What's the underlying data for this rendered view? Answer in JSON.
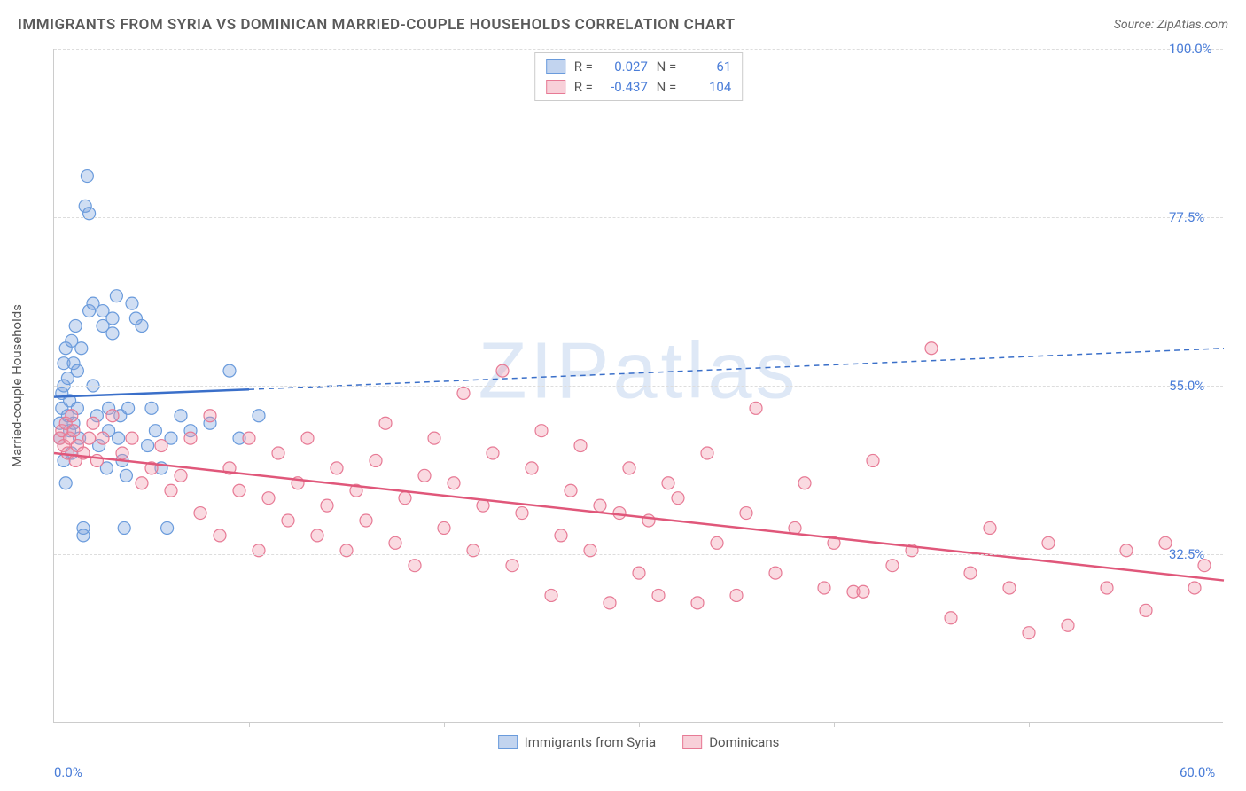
{
  "title": "IMMIGRANTS FROM SYRIA VS DOMINICAN MARRIED-COUPLE HOUSEHOLDS CORRELATION CHART",
  "source": "Source: ZipAtlas.com",
  "watermark": "ZIPatlas",
  "y_axis_title": "Married-couple Households",
  "chart": {
    "type": "scatter",
    "xlim": [
      0,
      60
    ],
    "ylim": [
      10,
      100
    ],
    "x_ticks": [
      0,
      60
    ],
    "y_ticks": [
      32.5,
      55.0,
      77.5,
      100.0
    ],
    "y_tick_labels": [
      "32.5%",
      "55.0%",
      "77.5%",
      "100.0%"
    ],
    "x_tick_labels": [
      "0.0%",
      "60.0%"
    ],
    "x_minor_ticks": [
      10,
      20,
      30,
      40,
      50
    ],
    "background_color": "#ffffff",
    "grid_color": "#dddddd",
    "axis_color": "#cccccc"
  },
  "series": [
    {
      "name": "Immigrants from Syria",
      "color_fill": "rgba(120,160,220,0.35)",
      "color_stroke": "#6a9bdc",
      "marker_radius": 7,
      "R": "0.027",
      "N": "61",
      "reg_line": {
        "x1": 0,
        "y1": 53.5,
        "x2": 10,
        "y2": 54.5,
        "extend_to": 60,
        "extend_y": 60.0,
        "color": "#3a6fc9",
        "width": 2.5
      },
      "points": [
        [
          0.3,
          48
        ],
        [
          0.3,
          50
        ],
        [
          0.4,
          52
        ],
        [
          0.4,
          54
        ],
        [
          0.5,
          45
        ],
        [
          0.5,
          55
        ],
        [
          0.5,
          58
        ],
        [
          0.6,
          60
        ],
        [
          0.6,
          42
        ],
        [
          0.7,
          51
        ],
        [
          0.7,
          56
        ],
        [
          0.8,
          53
        ],
        [
          0.8,
          49
        ],
        [
          0.9,
          61
        ],
        [
          0.9,
          46
        ],
        [
          1.0,
          58
        ],
        [
          1.0,
          50
        ],
        [
          1.1,
          63
        ],
        [
          1.2,
          52
        ],
        [
          1.2,
          57
        ],
        [
          1.3,
          48
        ],
        [
          1.4,
          60
        ],
        [
          1.5,
          36
        ],
        [
          1.5,
          35
        ],
        [
          1.6,
          79
        ],
        [
          1.7,
          83
        ],
        [
          1.8,
          78
        ],
        [
          1.8,
          65
        ],
        [
          2.0,
          66
        ],
        [
          2.0,
          55
        ],
        [
          2.2,
          51
        ],
        [
          2.3,
          47
        ],
        [
          2.5,
          65
        ],
        [
          2.5,
          63
        ],
        [
          2.7,
          44
        ],
        [
          2.8,
          49
        ],
        [
          2.8,
          52
        ],
        [
          3.0,
          62
        ],
        [
          3.0,
          64
        ],
        [
          3.2,
          67
        ],
        [
          3.3,
          48
        ],
        [
          3.4,
          51
        ],
        [
          3.5,
          45
        ],
        [
          3.6,
          36
        ],
        [
          3.7,
          43
        ],
        [
          3.8,
          52
        ],
        [
          4.0,
          66
        ],
        [
          4.2,
          64
        ],
        [
          4.5,
          63
        ],
        [
          4.8,
          47
        ],
        [
          5.0,
          52
        ],
        [
          5.2,
          49
        ],
        [
          5.5,
          44
        ],
        [
          5.8,
          36
        ],
        [
          6.0,
          48
        ],
        [
          6.5,
          51
        ],
        [
          7.0,
          49
        ],
        [
          8.0,
          50
        ],
        [
          9.0,
          57
        ],
        [
          9.5,
          48
        ],
        [
          10.5,
          51
        ]
      ]
    },
    {
      "name": "Dominicans",
      "color_fill": "rgba(240,150,170,0.35)",
      "color_stroke": "#e77a95",
      "marker_radius": 7,
      "R": "-0.437",
      "N": "104",
      "reg_line": {
        "x1": 0,
        "y1": 46.0,
        "x2": 60,
        "y2": 29.0,
        "extend_to": 60,
        "extend_y": 29.0,
        "color": "#e0577a",
        "width": 2.5
      },
      "points": [
        [
          0.3,
          48
        ],
        [
          0.4,
          49
        ],
        [
          0.5,
          47
        ],
        [
          0.6,
          50
        ],
        [
          0.7,
          46
        ],
        [
          0.8,
          48
        ],
        [
          0.9,
          51
        ],
        [
          1.0,
          49
        ],
        [
          1.1,
          45
        ],
        [
          1.2,
          47
        ],
        [
          1.5,
          46
        ],
        [
          1.8,
          48
        ],
        [
          2.0,
          50
        ],
        [
          2.2,
          45
        ],
        [
          2.5,
          48
        ],
        [
          3.0,
          51
        ],
        [
          3.5,
          46
        ],
        [
          4.0,
          48
        ],
        [
          4.5,
          42
        ],
        [
          5.0,
          44
        ],
        [
          5.5,
          47
        ],
        [
          6.0,
          41
        ],
        [
          6.5,
          43
        ],
        [
          7.0,
          48
        ],
        [
          7.5,
          38
        ],
        [
          8.0,
          51
        ],
        [
          8.5,
          35
        ],
        [
          9.0,
          44
        ],
        [
          9.5,
          41
        ],
        [
          10.0,
          48
        ],
        [
          10.5,
          33
        ],
        [
          11.0,
          40
        ],
        [
          11.5,
          46
        ],
        [
          12.0,
          37
        ],
        [
          12.5,
          42
        ],
        [
          13.0,
          48
        ],
        [
          13.5,
          35
        ],
        [
          14.0,
          39
        ],
        [
          14.5,
          44
        ],
        [
          15.0,
          33
        ],
        [
          15.5,
          41
        ],
        [
          16.0,
          37
        ],
        [
          16.5,
          45
        ],
        [
          17.0,
          50
        ],
        [
          17.5,
          34
        ],
        [
          18.0,
          40
        ],
        [
          18.5,
          31
        ],
        [
          19.0,
          43
        ],
        [
          19.5,
          48
        ],
        [
          20.0,
          36
        ],
        [
          20.5,
          42
        ],
        [
          21.0,
          54
        ],
        [
          21.5,
          33
        ],
        [
          22.0,
          39
        ],
        [
          22.5,
          46
        ],
        [
          23.0,
          57
        ],
        [
          23.5,
          31
        ],
        [
          24.0,
          38
        ],
        [
          24.5,
          44
        ],
        [
          25.0,
          49
        ],
        [
          25.5,
          27
        ],
        [
          26.0,
          35
        ],
        [
          26.5,
          41
        ],
        [
          27.0,
          47
        ],
        [
          27.5,
          33
        ],
        [
          28.0,
          39
        ],
        [
          28.5,
          26
        ],
        [
          29.0,
          38
        ],
        [
          29.5,
          44
        ],
        [
          30.0,
          30
        ],
        [
          30.5,
          37
        ],
        [
          31.0,
          27
        ],
        [
          31.5,
          42
        ],
        [
          32.0,
          40
        ],
        [
          33.0,
          26
        ],
        [
          33.5,
          46
        ],
        [
          34.0,
          34
        ],
        [
          35.0,
          27
        ],
        [
          35.5,
          38
        ],
        [
          36.0,
          52
        ],
        [
          37.0,
          30
        ],
        [
          38.0,
          36
        ],
        [
          38.5,
          42
        ],
        [
          39.5,
          28
        ],
        [
          40.0,
          34
        ],
        [
          41.0,
          27.5
        ],
        [
          41.5,
          27.5
        ],
        [
          42.0,
          45
        ],
        [
          43.0,
          31
        ],
        [
          44.0,
          33
        ],
        [
          45.0,
          60
        ],
        [
          46.0,
          24
        ],
        [
          47.0,
          30
        ],
        [
          48.0,
          36
        ],
        [
          49.0,
          28
        ],
        [
          50.0,
          22
        ],
        [
          51.0,
          34
        ],
        [
          52.0,
          23
        ],
        [
          54.0,
          28
        ],
        [
          55.0,
          33
        ],
        [
          56.0,
          25
        ],
        [
          57.0,
          34
        ],
        [
          58.5,
          28
        ],
        [
          59.0,
          31
        ]
      ]
    }
  ],
  "legend": {
    "items": [
      {
        "label": "Immigrants from Syria",
        "fill": "rgba(120,160,220,0.45)",
        "stroke": "#6a9bdc"
      },
      {
        "label": "Dominicans",
        "fill": "rgba(240,150,170,0.45)",
        "stroke": "#e77a95"
      }
    ]
  }
}
